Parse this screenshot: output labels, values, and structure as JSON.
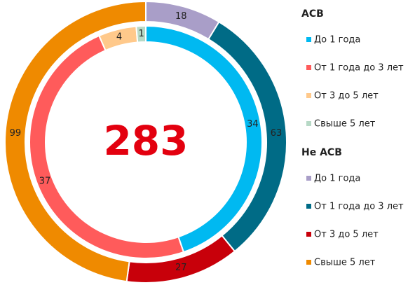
{
  "chart_data": {
    "type": "donut",
    "center_label": "283",
    "series": [
      {
        "name": "АСВ",
        "categories": [
          "До 1 года",
          "От 1 года до 3 лет",
          "От 3 до 5 лет",
          "Свыше 5 лет"
        ],
        "colors": [
          "#00b9f1",
          "#ff5b5b",
          "#ffc98b",
          "#b7d9c6"
        ],
        "values": [
          34,
          37,
          4,
          1
        ]
      },
      {
        "name": "Не АСВ",
        "categories": [
          "До 1 года",
          "От 1 года до 3 лет",
          "От 3 до 5 лет",
          "Свыше 5 лет"
        ],
        "colors": [
          "#a99ec8",
          "#006b86",
          "#c8000a",
          "#ef8a00"
        ],
        "values": [
          18,
          63,
          27,
          99
        ]
      }
    ]
  }
}
